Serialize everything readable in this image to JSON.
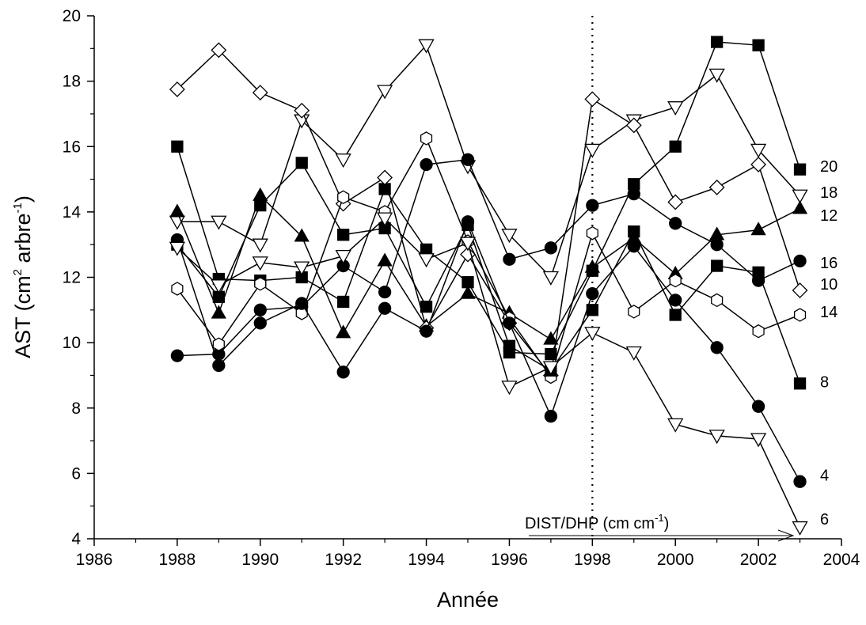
{
  "chart_data": {
    "type": "line",
    "xlabel": "Année",
    "ylabel": "AST (cm",
    "ylabel_sup": "2",
    "ylabel_mid": " arbre",
    "ylabel_sup2": "-1",
    "ylabel_end": ")",
    "xlim": [
      1986,
      2004
    ],
    "ylim": [
      4,
      20
    ],
    "xticks": [
      "1986",
      "1988",
      "1990",
      "1992",
      "1994",
      "1996",
      "1998",
      "2000",
      "2002",
      "2004"
    ],
    "yticks": [
      "4",
      "6",
      "8",
      "10",
      "12",
      "14",
      "16",
      "18",
      "20"
    ],
    "grid": false,
    "reference_line": {
      "x": 1998,
      "style": "dotted"
    },
    "annotation": {
      "text": "DIST/DHP (cm cm",
      "sup": "-1",
      "end": ")",
      "arrow": "right"
    },
    "x": [
      1988,
      1989,
      1990,
      1991,
      1992,
      1993,
      1994,
      1995,
      1996,
      1997,
      1998,
      1999,
      2000,
      2001,
      2002,
      2003
    ],
    "series": [
      {
        "name": "20",
        "marker": "square-filled",
        "values": [
          16.0,
          11.95,
          11.9,
          12.0,
          11.25,
          14.7,
          12.85,
          11.85,
          9.7,
          9.65,
          12.2,
          14.85,
          16.0,
          19.2,
          19.1,
          15.3
        ]
      },
      {
        "name": "18",
        "marker": "triangle-down-open",
        "values": [
          13.7,
          13.7,
          13.0,
          16.8,
          15.6,
          17.7,
          19.1,
          15.4,
          13.3,
          12.0,
          15.9,
          16.8,
          17.2,
          18.2,
          15.9,
          14.5
        ]
      },
      {
        "name": "12",
        "marker": "triangle-up-filled",
        "values": [
          14.0,
          10.9,
          14.5,
          13.25,
          10.3,
          12.5,
          10.5,
          11.5,
          10.9,
          10.1,
          12.3,
          13.2,
          12.1,
          13.3,
          13.45,
          14.1
        ]
      },
      {
        "name": "16",
        "marker": "circle-filled",
        "values": [
          9.6,
          9.65,
          11.0,
          11.1,
          12.35,
          11.55,
          15.45,
          15.6,
          12.55,
          12.9,
          14.2,
          14.55,
          13.65,
          13.0,
          11.9,
          12.5
        ]
      },
      {
        "name": "10",
        "marker": "diamond-open",
        "values": [
          17.75,
          18.95,
          17.65,
          17.1,
          14.25,
          15.05,
          10.45,
          12.7,
          10.6,
          9.0,
          17.45,
          16.65,
          14.3,
          14.75,
          15.45,
          11.6
        ]
      },
      {
        "name": "14",
        "marker": "hexagon-open",
        "values": [
          11.65,
          9.95,
          11.8,
          10.9,
          14.45,
          14.0,
          16.25,
          13.1,
          10.75,
          8.95,
          13.35,
          10.95,
          11.9,
          11.3,
          10.35,
          10.85
        ]
      },
      {
        "name": "8",
        "marker": "square-filled",
        "values": [
          13.0,
          11.4,
          14.2,
          15.5,
          13.3,
          13.5,
          11.1,
          13.6,
          9.9,
          9.15,
          11.0,
          13.4,
          10.85,
          12.35,
          12.15,
          8.75
        ]
      },
      {
        "name": "4",
        "marker": "circle-filled",
        "values": [
          13.15,
          9.3,
          10.6,
          11.2,
          9.1,
          11.05,
          10.35,
          13.7,
          10.6,
          7.75,
          11.5,
          12.95,
          11.3,
          9.85,
          8.05,
          5.75
        ]
      },
      {
        "name": "6",
        "marker": "triangle-down-open",
        "values": [
          12.9,
          11.75,
          12.45,
          12.3,
          12.65,
          13.8,
          12.55,
          13.05,
          8.65,
          9.25,
          10.3,
          9.7,
          7.5,
          7.15,
          7.05,
          4.35
        ]
      }
    ],
    "end_labels": [
      {
        "text": "20",
        "y": 15.4
      },
      {
        "text": "18",
        "y": 14.6
      },
      {
        "text": "12",
        "y": 13.9
      },
      {
        "text": "16",
        "y": 12.45
      },
      {
        "text": "10",
        "y": 11.8
      },
      {
        "text": "14",
        "y": 10.95
      },
      {
        "text": "8",
        "y": 8.8
      },
      {
        "text": "4",
        "y": 5.95
      },
      {
        "text": "6",
        "y": 4.6
      }
    ]
  }
}
